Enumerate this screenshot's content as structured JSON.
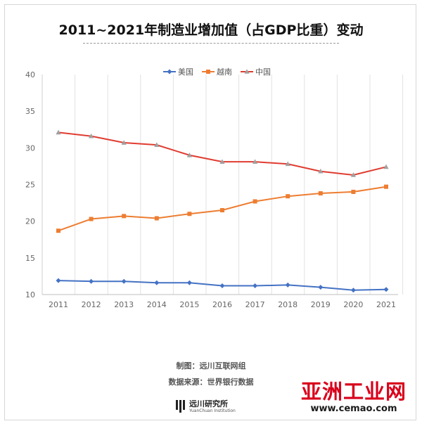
{
  "footer": {
    "made_by": "制图：远川互联网组",
    "source": "数据来源：世界银行数据",
    "brand_cn": "远川研究所",
    "brand_en": "YuanChuan Institution"
  },
  "watermark": {
    "text": "亚洲工业网",
    "url": "www.cemao.com"
  },
  "chart_data": {
    "type": "line",
    "title": "2011~2021年制造业增加值（占GDP比重）变动",
    "xlabel": "",
    "ylabel": "",
    "categories": [
      "2011",
      "2012",
      "2013",
      "2014",
      "2015",
      "2016",
      "2017",
      "2018",
      "2019",
      "2020",
      "2021"
    ],
    "ylim": [
      10,
      40
    ],
    "yticks": [
      10,
      15,
      20,
      25,
      30,
      35,
      40
    ],
    "grid": "vertical",
    "legend_position": "top",
    "series": [
      {
        "name": "美国",
        "color": "#4472c4",
        "marker": "diamond",
        "values": [
          11.9,
          11.8,
          11.8,
          11.6,
          11.6,
          11.2,
          11.2,
          11.3,
          11.0,
          10.6,
          10.7
        ]
      },
      {
        "name": "越南",
        "color": "#ed7d31",
        "marker": "square",
        "values": [
          18.7,
          20.3,
          20.7,
          20.4,
          21.0,
          21.5,
          22.7,
          23.4,
          23.8,
          24.0,
          24.7
        ]
      },
      {
        "name": "中国",
        "color": "#e03c31",
        "marker": "triangle",
        "values": [
          32.1,
          31.6,
          30.7,
          30.4,
          29.0,
          28.1,
          28.1,
          27.8,
          26.8,
          26.3,
          27.4
        ]
      }
    ]
  }
}
